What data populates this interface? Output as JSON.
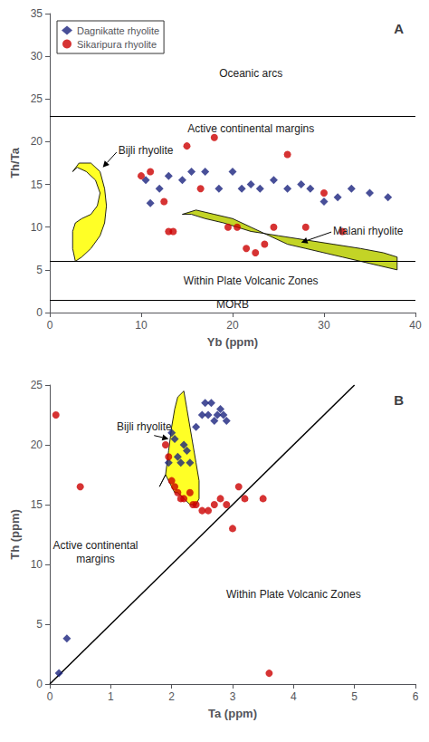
{
  "chart_data": [
    {
      "type": "scatter",
      "title": "A",
      "xlabel": "Yb (ppm)",
      "ylabel": "Th/Ta",
      "xlim": [
        0,
        40
      ],
      "ylim": [
        0,
        35
      ],
      "xticks": [
        0,
        10,
        20,
        30,
        40
      ],
      "yticks": [
        0,
        5,
        10,
        15,
        20,
        25,
        30,
        35
      ],
      "grid": false,
      "legend": "upper left",
      "hlines": [
        23,
        6,
        1.5
      ],
      "series": [
        {
          "name": "Dagnikatte rhyolite",
          "color": "#1a237e",
          "marker": "diamond",
          "x": [
            10.5,
            11.0,
            12.0,
            13.0,
            14.5,
            15.5,
            17.0,
            18.5,
            20.0,
            21.0,
            22.0,
            23.0,
            24.5,
            26.0,
            27.5,
            28.5,
            30.0,
            31.5,
            33.0,
            35.0,
            37.0
          ],
          "values": [
            15.5,
            12.8,
            14.5,
            16.0,
            15.5,
            16.5,
            16.5,
            14.5,
            16.5,
            14.5,
            15.0,
            14.5,
            15.5,
            14.5,
            15.0,
            14.5,
            13.0,
            13.5,
            14.5,
            14.0,
            13.5
          ]
        },
        {
          "name": "Sikaripura rhyolite",
          "color": "#cc0000",
          "marker": "circle",
          "x": [
            10.0,
            11.0,
            12.5,
            13.0,
            13.5,
            15.0,
            16.5,
            18.0,
            19.5,
            20.5,
            21.5,
            22.5,
            23.5,
            24.5,
            26.0,
            28.0,
            30.0,
            32.0
          ],
          "values": [
            16.0,
            16.5,
            13.0,
            9.5,
            9.5,
            19.5,
            14.5,
            20.5,
            10.0,
            10.0,
            7.5,
            7.0,
            8.0,
            10.0,
            18.5,
            10.0,
            14.0,
            9.5
          ]
        }
      ],
      "polygons": [
        {
          "color": "#ffff00",
          "x": [
            2.5,
            3.2,
            4.5,
            5.5,
            6.0,
            6.2,
            6.0,
            5.5,
            4.5,
            3.5,
            2.8,
            2.5,
            2.5,
            2.8,
            3.5,
            4.5,
            5.2,
            5.5,
            5.0,
            4.0,
            3.0,
            2.5
          ],
          "y": [
            16.5,
            17.5,
            17.5,
            16.5,
            14.5,
            12.5,
            10.5,
            9.0,
            7.5,
            6.5,
            6.0,
            7.5,
            9.5,
            10.5,
            11.0,
            11.5,
            12.5,
            14.0,
            15.5,
            16.5,
            17.0,
            16.5
          ]
        },
        {
          "color": "#b8cc00",
          "x": [
            14.5,
            16.0,
            18.0,
            20.0,
            22.0,
            24.0,
            26.0,
            28.0,
            30.0,
            32.0,
            34.0,
            36.0,
            38.0,
            38.0,
            36.5,
            34.0,
            31.0,
            28.0,
            25.0,
            22.0,
            19.0,
            17.0,
            15.5,
            14.5
          ],
          "y": [
            11.5,
            12.0,
            11.5,
            11.0,
            10.0,
            9.0,
            8.0,
            7.5,
            7.0,
            6.5,
            6.0,
            5.5,
            5.0,
            6.5,
            7.0,
            7.5,
            8.0,
            8.5,
            9.0,
            9.5,
            10.5,
            11.0,
            11.5,
            11.5
          ]
        }
      ],
      "annotations": [
        {
          "text": "Oceanic arcs",
          "x": 22,
          "y": 28
        },
        {
          "text": "Active continental margins",
          "x": 22,
          "y": 21.5
        },
        {
          "text": "Within Plate Volcanic Zones",
          "x": 22,
          "y": 3.7
        },
        {
          "text": "MORB",
          "x": 20,
          "y": 1.0
        },
        {
          "text": "Bijli rhyolite",
          "x": 7.5,
          "y": 19.0,
          "arrow_x": 5.8,
          "arrow_y": 17.0
        },
        {
          "text": "Malani rhyolite",
          "x": 31.0,
          "y": 9.5,
          "arrow_x": 27.5,
          "arrow_y": 8.2
        }
      ]
    },
    {
      "type": "scatter",
      "title": "B",
      "xlabel": "Ta (ppm)",
      "ylabel": "Th (ppm)",
      "xlim": [
        0,
        6
      ],
      "ylim": [
        0,
        25
      ],
      "xticks": [
        0,
        1,
        2,
        3,
        4,
        5,
        6
      ],
      "yticks": [
        0,
        5,
        10,
        15,
        20,
        25
      ],
      "grid": false,
      "lines": [
        {
          "color": "black",
          "x": [
            0.0,
            5.0
          ],
          "y": [
            0.0,
            25.0
          ]
        }
      ],
      "series": [
        {
          "name": "Dagnikatte rhyolite",
          "color": "#1a237e",
          "marker": "diamond",
          "x": [
            0.15,
            0.28,
            1.95,
            2.0,
            2.05,
            2.1,
            2.15,
            2.2,
            2.25,
            2.3,
            2.4,
            2.5,
            2.55,
            2.6,
            2.65,
            2.7,
            2.75,
            2.8,
            2.85,
            2.9
          ],
          "values": [
            0.9,
            3.8,
            18.5,
            21.0,
            20.5,
            19.0,
            18.5,
            20.0,
            19.5,
            18.5,
            21.5,
            22.5,
            23.5,
            22.5,
            23.5,
            22.0,
            22.5,
            23.0,
            22.5,
            22.0
          ]
        },
        {
          "name": "Sikaripura rhyolite",
          "color": "#cc0000",
          "marker": "circle",
          "x": [
            0.1,
            0.5,
            1.9,
            1.95,
            2.0,
            2.05,
            2.1,
            2.15,
            2.2,
            2.3,
            2.35,
            2.4,
            2.5,
            2.6,
            2.7,
            2.8,
            2.9,
            3.0,
            3.1,
            3.2,
            3.5,
            3.6
          ],
          "values": [
            22.5,
            16.5,
            20.0,
            19.0,
            17.0,
            16.5,
            16.0,
            15.5,
            15.5,
            16.0,
            15.0,
            15.0,
            14.5,
            14.5,
            15.0,
            15.5,
            15.0,
            13.0,
            16.5,
            15.5,
            15.5,
            0.9
          ]
        }
      ],
      "polygons": [
        {
          "color": "#ffff00",
          "x": [
            1.8,
            1.9,
            1.95,
            2.0,
            2.05,
            2.1,
            2.2,
            2.25,
            2.3,
            2.35,
            2.4,
            2.45,
            2.45,
            2.4,
            2.3,
            2.2,
            2.1,
            2.05,
            2.0,
            1.95,
            1.9,
            1.85,
            1.8
          ],
          "y": [
            16.5,
            17.5,
            19.5,
            21.5,
            23.0,
            24.0,
            24.5,
            23.0,
            21.5,
            20.0,
            18.5,
            17.0,
            15.5,
            15.0,
            15.0,
            15.5,
            16.0,
            16.0,
            16.5,
            17.0,
            17.5,
            17.0,
            16.5
          ]
        }
      ],
      "annotations": [
        {
          "text": "Active continental\nmargins",
          "x": 0.75,
          "y": 11.0
        },
        {
          "text": "Within Plate Volcanic Zones",
          "x": 4.0,
          "y": 7.5
        },
        {
          "text": "Bijli rhyolite",
          "x": 1.1,
          "y": 21.5,
          "arrow_x": 1.95,
          "arrow_y": 20.5
        }
      ]
    }
  ]
}
